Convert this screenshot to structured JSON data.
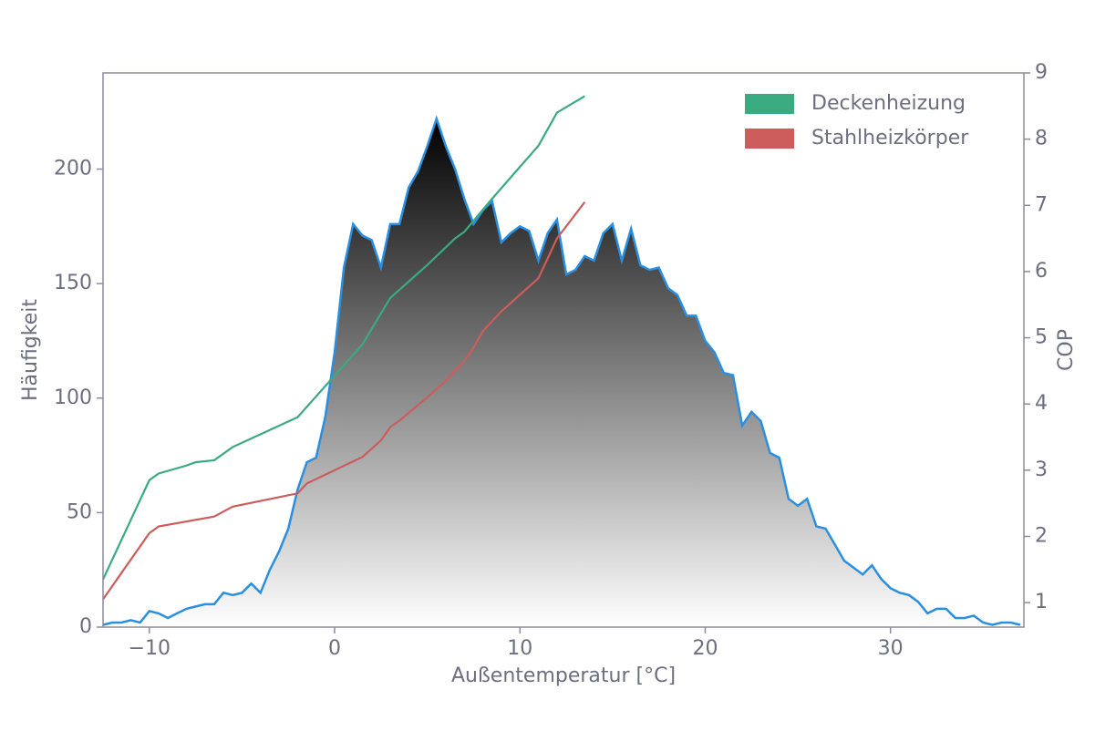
{
  "chart_data": {
    "type": "area-line",
    "xlabel": "Außentemperatur [°C]",
    "ylabel": "Häufigkeit",
    "y2label": "COP",
    "xlim": [
      -12.5,
      37.2
    ],
    "ylim": [
      0,
      242
    ],
    "y2lim": [
      0.63,
      9
    ],
    "xticks": [
      {
        "value": -10,
        "label": "−10"
      },
      0,
      10,
      20,
      30
    ],
    "yticks": [
      0,
      50,
      100,
      150,
      200
    ],
    "y2ticks": [
      1,
      2,
      3,
      4,
      5,
      6,
      7,
      8,
      9
    ],
    "legend": "upper right",
    "area": {
      "color": "#2a8fe0",
      "fill_top": "#1f4f95",
      "x": [
        -12.5,
        -12,
        -11.5,
        -11,
        -10.5,
        -10,
        -9.5,
        -9,
        -8.5,
        -8,
        -7.5,
        -7,
        -6.5,
        -6,
        -5.5,
        -5,
        -4.5,
        -4,
        -3.5,
        -3,
        -2.5,
        -2,
        -1.5,
        -1,
        -0.5,
        0,
        0.5,
        1,
        1.5,
        2,
        2.5,
        3,
        3.5,
        4,
        4.5,
        5,
        5.5,
        6,
        6.5,
        7,
        7.5,
        8,
        8.5,
        9,
        9.5,
        10,
        10.5,
        11,
        11.5,
        12,
        12.5,
        13,
        13.5,
        14,
        14.5,
        15,
        15.5,
        16,
        16.5,
        17,
        17.5,
        18,
        18.5,
        19,
        19.5,
        20,
        20.5,
        21,
        21.5,
        22,
        22.5,
        23,
        23.5,
        24,
        24.5,
        25,
        25.5,
        26,
        26.5,
        27,
        27.5,
        28,
        28.5,
        29,
        29.5,
        30,
        30.5,
        31,
        31.5,
        32,
        32.5,
        33,
        33.5,
        34,
        34.5,
        35,
        35.5,
        36,
        36.5,
        37
      ],
      "values": [
        1,
        2,
        2,
        3,
        2,
        7,
        6,
        4,
        6,
        8,
        9,
        10,
        10,
        15,
        14,
        15,
        19,
        15,
        25,
        33,
        43,
        60,
        72,
        74,
        92,
        120,
        157,
        176,
        171,
        169,
        157,
        176,
        176,
        192,
        199,
        210,
        222,
        210,
        200,
        187,
        176,
        182,
        186,
        168,
        172,
        175,
        173,
        160,
        172,
        178,
        154,
        156,
        162,
        160,
        172,
        176,
        160,
        174,
        158,
        156,
        157,
        148,
        145,
        136,
        136,
        125,
        120,
        111,
        110,
        88,
        94,
        90,
        76,
        74,
        56,
        53,
        56,
        44,
        43,
        36,
        29,
        26,
        23,
        27,
        21,
        17,
        15,
        14,
        11,
        6,
        8,
        8,
        4,
        4,
        5,
        2,
        1,
        2,
        2,
        1
      ]
    },
    "series": [
      {
        "name": "Deckenheizung",
        "color": "#3aaa80",
        "axis": "y2",
        "x": [
          -12.5,
          -10,
          -9.5,
          -8,
          -7.5,
          -6.5,
          -5.5,
          -2,
          1.5,
          3,
          5,
          6.5,
          7,
          8.5,
          11,
          12,
          13.5
        ],
        "values": [
          1.35,
          2.85,
          2.95,
          3.07,
          3.12,
          3.15,
          3.35,
          3.8,
          4.9,
          5.6,
          6.1,
          6.5,
          6.6,
          7.1,
          7.9,
          8.4,
          8.65
        ]
      },
      {
        "name": "Stahlheizkörper",
        "color": "#cd5c5c",
        "axis": "y2",
        "x": [
          -12.5,
          -10,
          -9.5,
          -6.5,
          -5.5,
          -2,
          -1.5,
          0,
          1.5,
          2.5,
          3,
          3.5,
          5,
          6,
          7,
          7.5,
          8,
          9,
          11,
          12,
          13.5
        ],
        "values": [
          1.05,
          2.05,
          2.15,
          2.3,
          2.45,
          2.65,
          2.8,
          3.0,
          3.2,
          3.45,
          3.65,
          3.75,
          4.1,
          4.35,
          4.65,
          4.85,
          5.1,
          5.4,
          5.9,
          6.5,
          7.05
        ]
      }
    ]
  }
}
